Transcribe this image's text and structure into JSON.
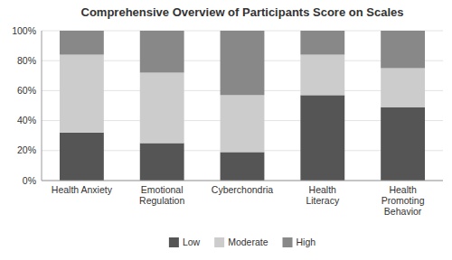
{
  "chart_data": {
    "type": "bar",
    "stacked": true,
    "title": "Comprehensive Overview of Participants Score on Scales",
    "categories": [
      "Health Anxiety",
      "Emotional\nRegulation",
      "Cyberchondria",
      "Health\nLiteracy",
      "Health\nPromoting\nBehavior"
    ],
    "series": [
      {
        "name": "Low",
        "color": "#555555",
        "values": [
          32,
          25,
          19,
          57,
          49
        ]
      },
      {
        "name": "Moderate",
        "color": "#cccccc",
        "values": [
          52,
          47,
          38,
          27,
          26
        ]
      },
      {
        "name": "High",
        "color": "#888888",
        "values": [
          16,
          28,
          43,
          16,
          25
        ]
      }
    ],
    "ylim": [
      0,
      100
    ],
    "yticks": [
      {
        "value": 0,
        "label": "0%"
      },
      {
        "value": 20,
        "label": "20%"
      },
      {
        "value": 40,
        "label": "40%"
      },
      {
        "value": 60,
        "label": "60%"
      },
      {
        "value": 80,
        "label": "80%"
      },
      {
        "value": 100,
        "label": "100%"
      }
    ],
    "grid": true,
    "legend": "bottom"
  }
}
